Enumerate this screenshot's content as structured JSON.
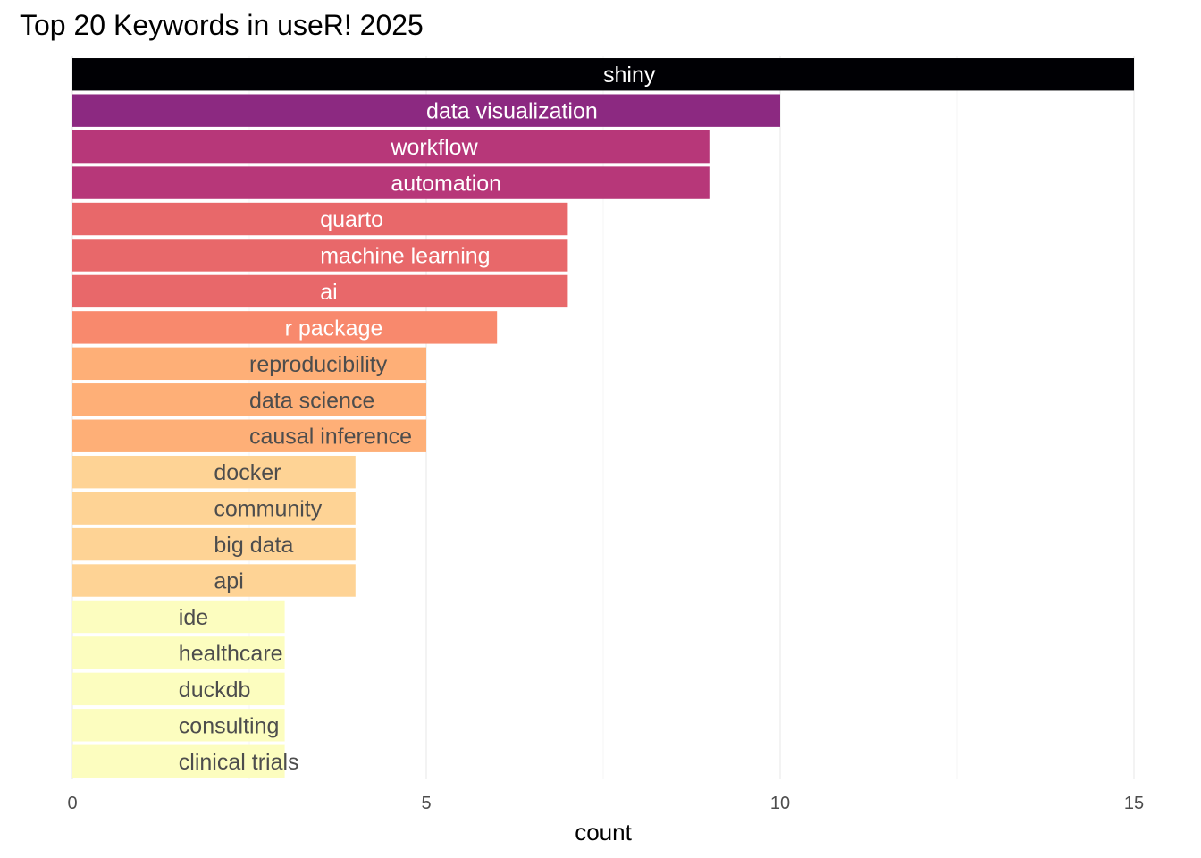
{
  "chart_data": {
    "type": "bar",
    "orientation": "horizontal",
    "title": "Top 20 Keywords in useR! 2025",
    "xlabel": "count",
    "ylabel": "",
    "xlim": [
      0,
      15
    ],
    "x_ticks": [
      0,
      5,
      10,
      15
    ],
    "grid": "vertical major and minor",
    "legend": "none",
    "categories": [
      "shiny",
      "data visualization",
      "workflow",
      "automation",
      "quarto",
      "machine learning",
      "ai",
      "r package",
      "reproducibility",
      "data science",
      "causal inference",
      "docker",
      "community",
      "big data",
      "api",
      "ide",
      "healthcare",
      "duckdb",
      "consulting",
      "clinical trials"
    ],
    "values": [
      15,
      10,
      9,
      9,
      7,
      7,
      7,
      6,
      5,
      5,
      5,
      4,
      4,
      4,
      4,
      3,
      3,
      3,
      3,
      3
    ],
    "colors": {
      "15": "#000004",
      "10": "#8C2981",
      "9": "#B73779",
      "7": "#E8686A",
      "6": "#F8896D",
      "5": "#FEAF77",
      "4": "#FED395",
      "3": "#FCFDBF"
    },
    "label_colors": {
      "dark": "#ffffff",
      "light": "#4d4d4d"
    }
  }
}
